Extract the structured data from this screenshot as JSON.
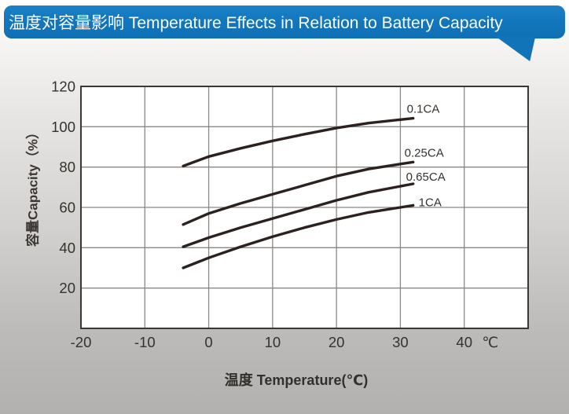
{
  "banner": {
    "title": "温度对容量影响 Temperature Effects in Relation to Battery Capacity",
    "bg_color": "#1377bd",
    "text_color": "#ffffff"
  },
  "chart_data": {
    "type": "line",
    "title": "温度对容量影响 Temperature Effects in Relation to Battery Capacity",
    "xlabel": "温度  Temperature(℃)",
    "ylabel": "容量Capacity（%）",
    "x_unit_label": "℃",
    "xlim": [
      -20,
      50
    ],
    "ylim": [
      0,
      120
    ],
    "x_ticks": [
      -20,
      -10,
      0,
      10,
      20,
      30,
      40
    ],
    "y_ticks": [
      120,
      100,
      80,
      60,
      40,
      20
    ],
    "grid": true,
    "legend_position": "inline-right",
    "x": [
      -4,
      0,
      5,
      10,
      15,
      20,
      25,
      30,
      32
    ],
    "series": [
      {
        "name": "0.1CA",
        "values": [
          80.5,
          85.2,
          89.3,
          93.0,
          96.3,
          99.4,
          101.8,
          103.5,
          104.2
        ],
        "label_dx": -8,
        "label_dy": -7
      },
      {
        "name": "0.25CA",
        "values": [
          51.5,
          57.0,
          62.0,
          66.5,
          71.0,
          75.5,
          79.0,
          81.5,
          82.5
        ],
        "label_dx": -11,
        "label_dy": -7
      },
      {
        "name": "0.65CA",
        "values": [
          40.5,
          45.0,
          50.0,
          54.5,
          59.0,
          63.5,
          67.5,
          70.5,
          71.7
        ],
        "label_dx": -9,
        "label_dy": -4
      },
      {
        "name": "1CA",
        "values": [
          30.0,
          35.0,
          40.5,
          45.5,
          50.0,
          54.0,
          57.5,
          60.0,
          61.0
        ],
        "label_dx": 7,
        "label_dy": 1
      }
    ],
    "line_color": "#2b221f",
    "grid_color": "#8b8784",
    "frame_color": "#3b3734",
    "tick_color": "#36312d",
    "plot_bg": "#ffffff"
  }
}
